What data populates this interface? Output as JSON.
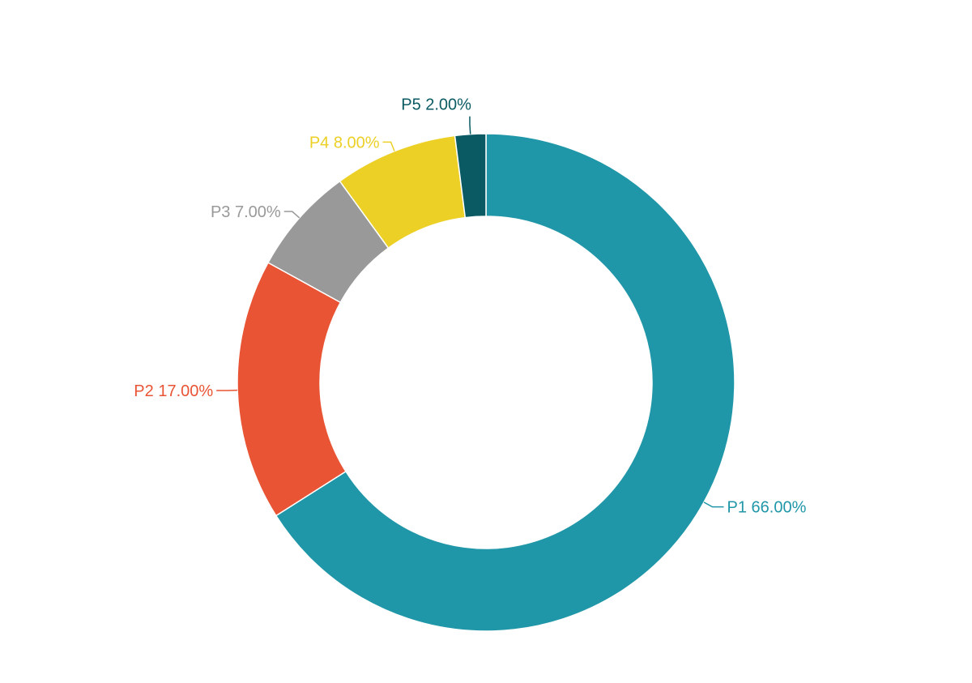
{
  "chart_data": {
    "type": "pie",
    "title": "",
    "donut": true,
    "categories": [
      "P1",
      "P2",
      "P3",
      "P4",
      "P5"
    ],
    "values": [
      66,
      17,
      7,
      8,
      2
    ],
    "labels": [
      "P1 66.00%",
      "P2 17.00%",
      "P3 7.00%",
      "P4 8.00%",
      "P5 2.00%"
    ],
    "colors": [
      "#2097a8",
      "#e85434",
      "#999999",
      "#ecd026",
      "#0a5a63"
    ],
    "start_direction": "top",
    "orientation": "clockwise",
    "legend": "none"
  }
}
